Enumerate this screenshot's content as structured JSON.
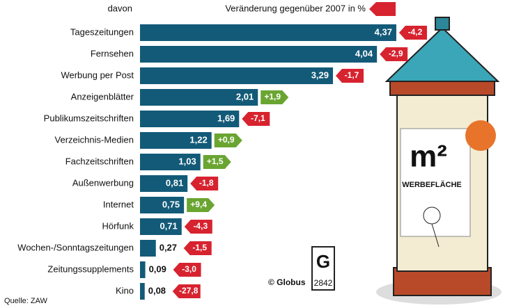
{
  "chart_data": {
    "type": "bar",
    "header_left": "davon",
    "header_right": "Veränderung gegenüber 2007 in %",
    "categories": [
      "Tageszeitungen",
      "Fernsehen",
      "Werbung per Post",
      "Anzeigenblätter",
      "Publikumszeitschriften",
      "Verzeichnis-Medien",
      "Fachzeitschriften",
      "Außenwerbung",
      "Internet",
      "Hörfunk",
      "Wochen-/Sonntagszeitungen",
      "Zeitungssupplements",
      "Kino"
    ],
    "values": [
      4.37,
      4.04,
      3.29,
      2.01,
      1.69,
      1.22,
      1.03,
      0.81,
      0.75,
      0.71,
      0.27,
      0.09,
      0.08
    ],
    "value_labels": [
      "4,37",
      "4,04",
      "3,29",
      "2,01",
      "1,69",
      "1,22",
      "1,03",
      "0,81",
      "0,75",
      "0,71",
      "0,27",
      "0,09",
      "0,08"
    ],
    "changes": [
      -4.2,
      -2.9,
      -1.7,
      1.9,
      -7.1,
      0.9,
      1.5,
      -1.8,
      9.4,
      -4.3,
      -1.5,
      -3.0,
      -27.8
    ],
    "change_labels": [
      "-4,2",
      "-2,9",
      "-1,7",
      "+1,9",
      "-7,1",
      "+0,9",
      "+1,5",
      "-1,8",
      "+9,4",
      "-4,3",
      "-1,5",
      "-3,0",
      "-27,8"
    ],
    "color": "#135a78",
    "negative_color": "#d7232f",
    "positive_color": "#6aa531",
    "source": "Quelle: ZAW",
    "credit": "© Globus",
    "graphic_number": "2842",
    "poster_text": "m²",
    "poster_caption": "WERBEFLÄCHE"
  }
}
